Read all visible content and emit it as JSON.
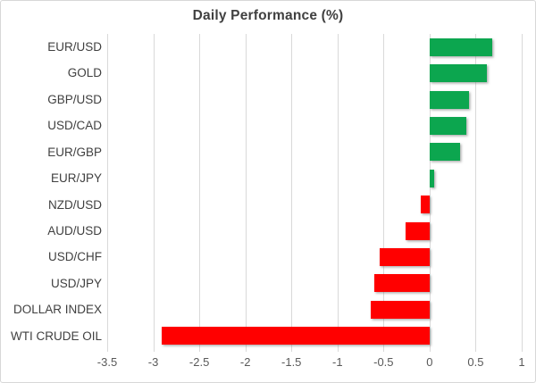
{
  "chart_data": {
    "type": "bar",
    "orientation": "horizontal",
    "title": "Daily Performance (%)",
    "xlabel": "",
    "ylabel": "",
    "categories": [
      "EUR/USD",
      "GOLD",
      "GBP/USD",
      "USD/CAD",
      "EUR/GBP",
      "EUR/JPY",
      "NZD/USD",
      "AUD/USD",
      "USD/CHF",
      "USD/JPY",
      "DOLLAR INDEX",
      "WTI CRUDE OIL"
    ],
    "values": [
      0.68,
      0.62,
      0.43,
      0.4,
      0.33,
      0.05,
      -0.1,
      -0.26,
      -0.54,
      -0.6,
      -0.64,
      -2.91
    ],
    "xlim": [
      -3.5,
      1
    ],
    "xtick_values": [
      -3.5,
      -3,
      -2.5,
      -2,
      -1.5,
      -1,
      -0.5,
      0,
      0.5,
      1
    ],
    "xtick_labels": [
      "-3.5",
      "-3",
      "-2.5",
      "-2",
      "-1.5",
      "-1",
      "-0.5",
      "0",
      "0.5",
      "1"
    ],
    "grid": "vertical",
    "legend": "none",
    "colors": {
      "positive": "#0CA64F",
      "negative": "#FF0000",
      "gridline": "#D9D9D9",
      "title_text": "#404040",
      "category_text": "#404040",
      "tick_text": "#595959"
    }
  }
}
